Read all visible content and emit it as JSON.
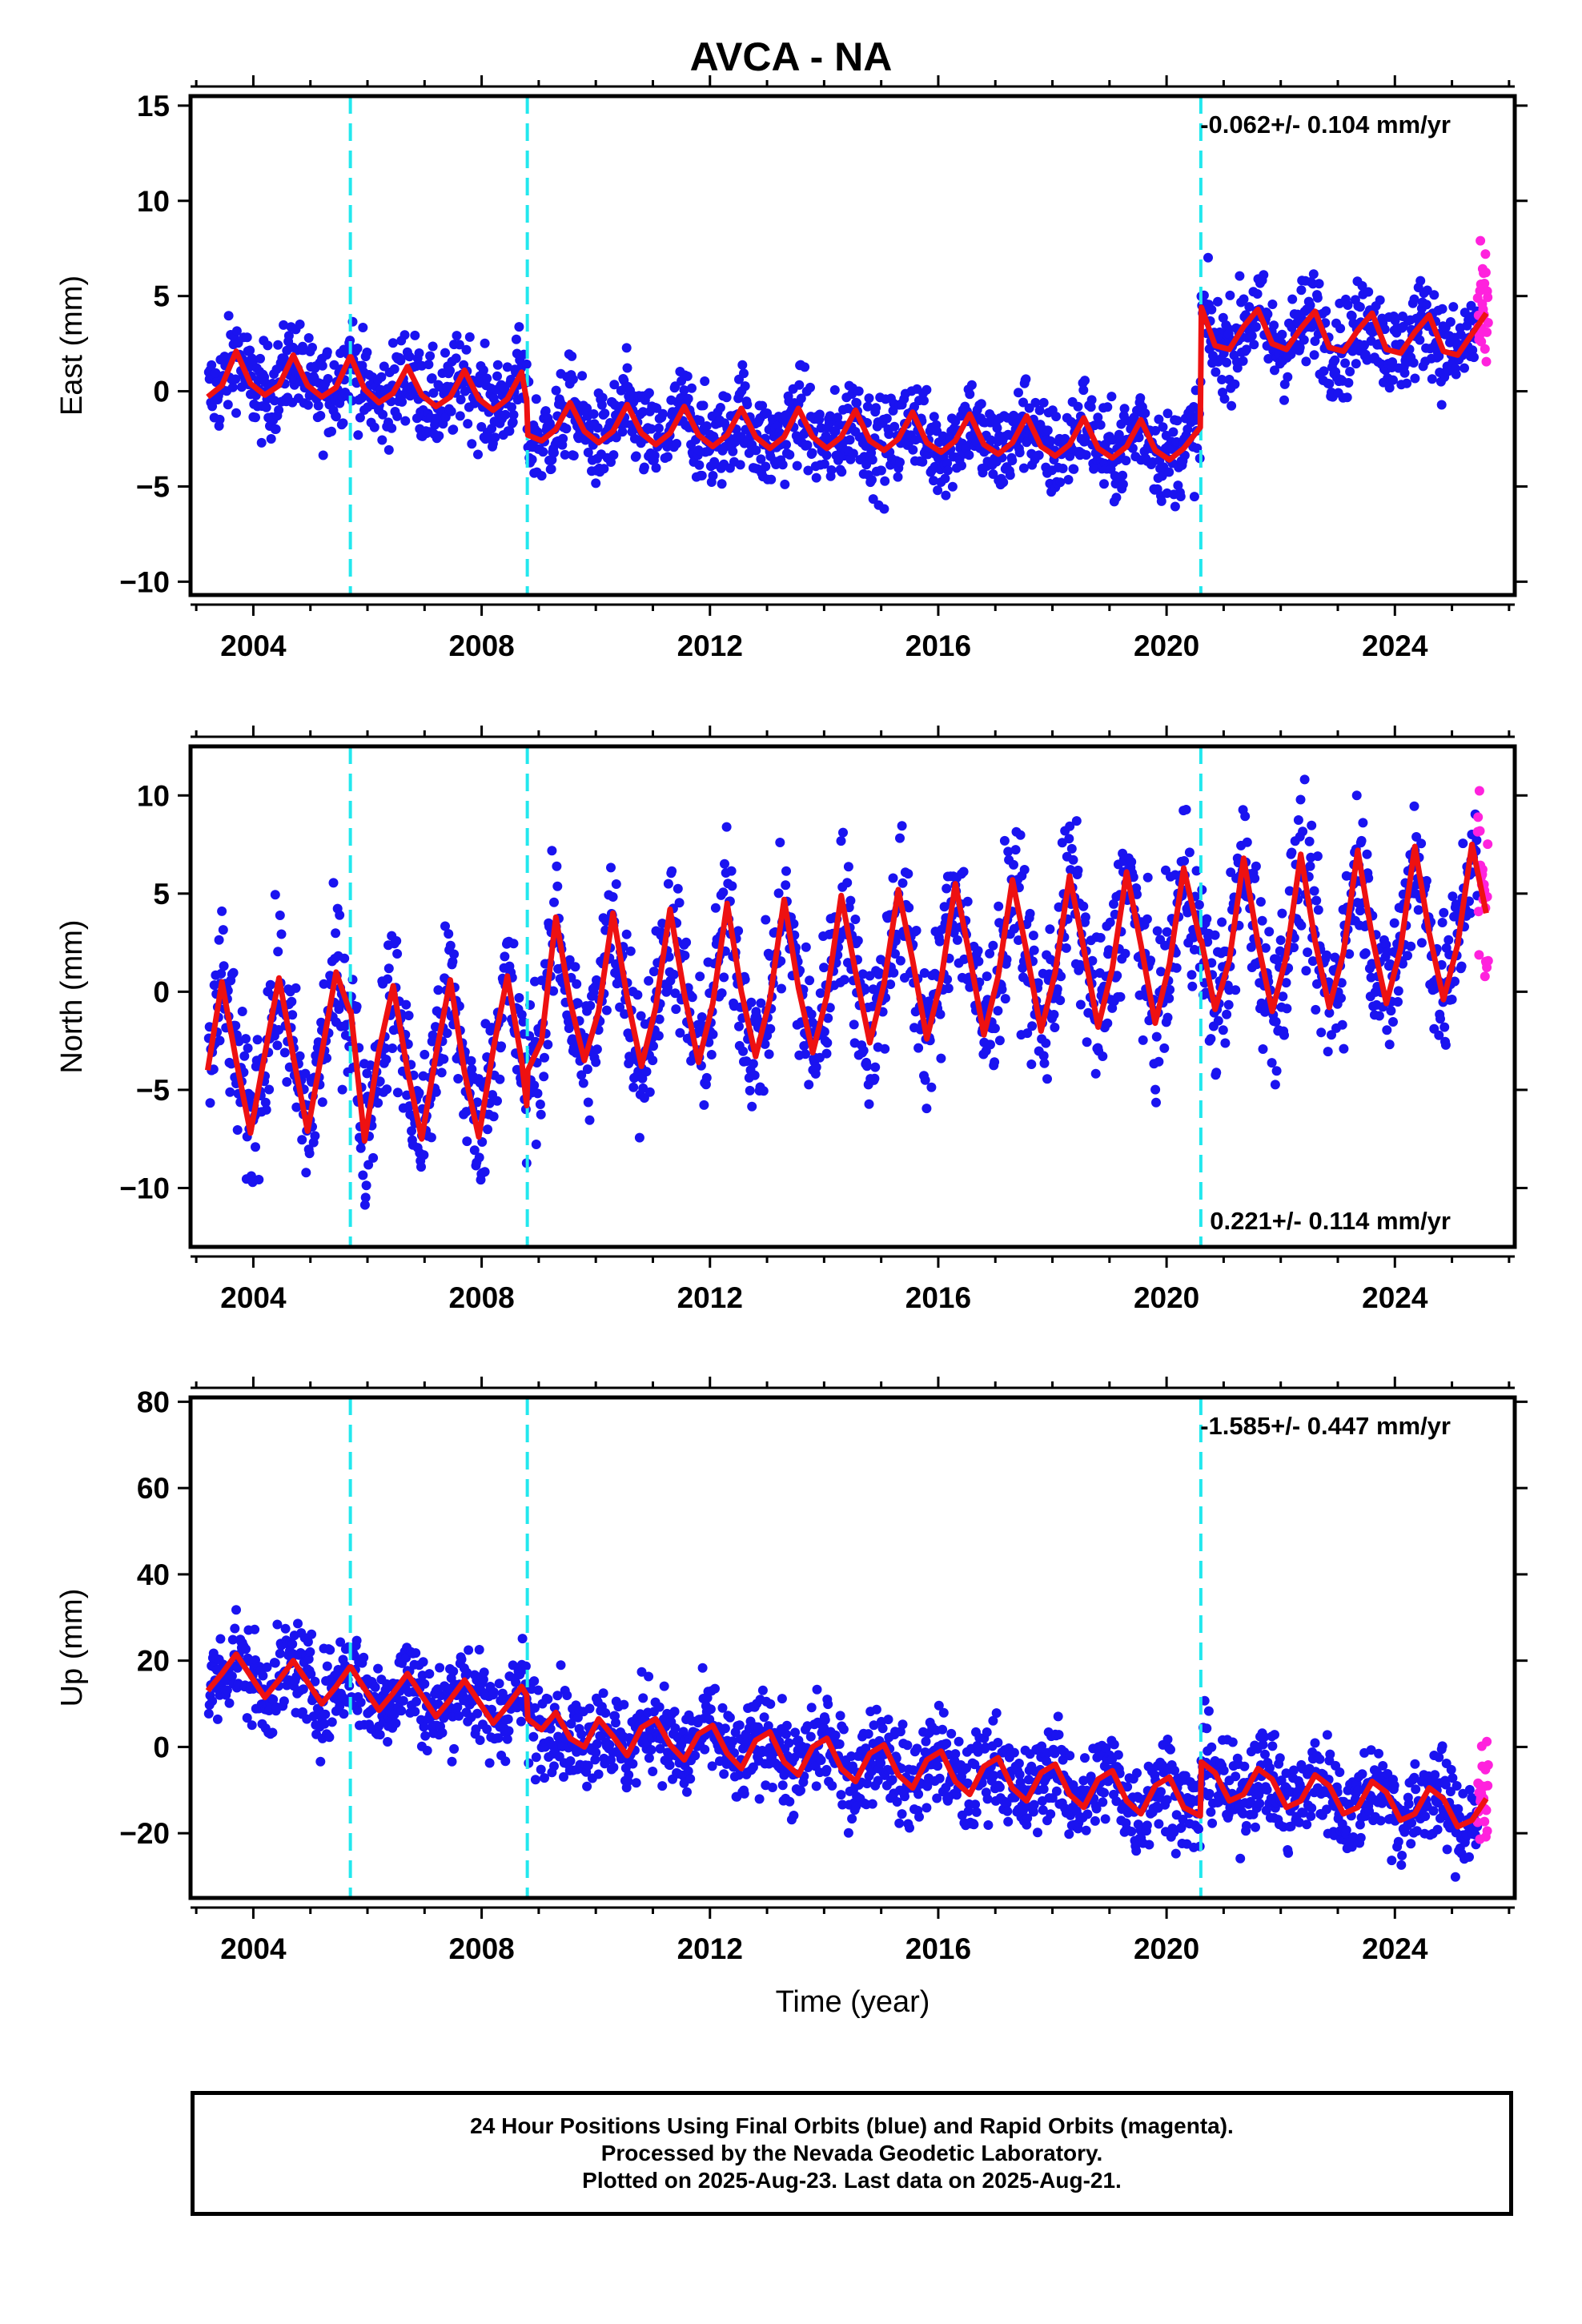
{
  "title": "AVCA - NA",
  "xlabel": "Time (year)",
  "colors": {
    "final_orbits": "#1a13f0",
    "rapid_orbits": "#ff22dd",
    "model": "#ee1111",
    "offsets": "#22e8ee",
    "frame": "#000000"
  },
  "offset_epochs": [
    2005.7,
    2008.8,
    2020.6
  ],
  "footer": {
    "line1": "24 Hour Positions Using Final Orbits (blue) and Rapid Orbits (magenta).",
    "line2": "Processed by the Nevada Geodetic Laboratory.",
    "line3": "Plotted on 2025-Aug-23. Last data on 2025-Aug-21."
  },
  "chart_data": [
    {
      "type": "scatter",
      "ylabel": "East (mm)",
      "rate_label": "-0.062+/- 0.104 mm/yr",
      "rate_position": "top-right",
      "xlim": [
        2002.9,
        2026.1
      ],
      "ylim": [
        -10.7,
        15.5
      ],
      "x_ticks": [
        2004,
        2008,
        2012,
        2016,
        2020,
        2024
      ],
      "y_ticks": [
        -10,
        -5,
        0,
        5,
        10,
        15
      ],
      "grid": false,
      "series": [
        {
          "role": "model",
          "x": [
            2003.2,
            2003.45,
            2003.7,
            2003.95,
            2004.2,
            2004.45,
            2004.7,
            2004.95,
            2005.2,
            2005.45,
            2005.69,
            2005.71,
            2005.95,
            2006.2,
            2006.45,
            2006.7,
            2006.95,
            2007.2,
            2007.45,
            2007.7,
            2007.95,
            2008.2,
            2008.45,
            2008.7,
            2008.79,
            2008.81,
            2009.05,
            2009.3,
            2009.55,
            2009.8,
            2010.05,
            2010.3,
            2010.55,
            2010.8,
            2011.05,
            2011.3,
            2011.55,
            2011.8,
            2012.05,
            2012.3,
            2012.55,
            2012.8,
            2013.05,
            2013.3,
            2013.55,
            2013.8,
            2014.05,
            2014.3,
            2014.55,
            2014.8,
            2015.05,
            2015.3,
            2015.55,
            2015.8,
            2016.05,
            2016.3,
            2016.55,
            2016.8,
            2017.05,
            2017.3,
            2017.55,
            2017.8,
            2018.05,
            2018.3,
            2018.55,
            2018.8,
            2019.05,
            2019.3,
            2019.55,
            2019.8,
            2020.05,
            2020.3,
            2020.59,
            2020.61,
            2020.85,
            2021.1,
            2021.35,
            2021.6,
            2021.85,
            2022.1,
            2022.35,
            2022.6,
            2022.85,
            2023.1,
            2023.35,
            2023.6,
            2023.85,
            2024.1,
            2024.35,
            2024.6,
            2024.85,
            2025.1,
            2025.35,
            2025.6
          ],
          "y": [
            -0.3,
            0.3,
            2.1,
            0.4,
            -0.2,
            0.3,
            1.9,
            0.3,
            -0.3,
            0.2,
            1.8,
            1.8,
            0.1,
            -0.6,
            -0.1,
            1.3,
            -0.2,
            -0.8,
            -0.3,
            1.1,
            -0.4,
            -1.0,
            -0.4,
            1.0,
            -0.5,
            -2.3,
            -2.6,
            -2.0,
            -0.6,
            -2.1,
            -2.7,
            -2.1,
            -0.7,
            -2.2,
            -2.8,
            -2.2,
            -0.8,
            -2.3,
            -2.9,
            -2.3,
            -0.9,
            -2.4,
            -3.0,
            -2.4,
            -0.9,
            -2.4,
            -3.0,
            -2.4,
            -1.0,
            -2.6,
            -3.1,
            -2.5,
            -1.1,
            -2.7,
            -3.2,
            -2.6,
            -1.2,
            -2.8,
            -3.3,
            -2.7,
            -1.3,
            -2.9,
            -3.4,
            -2.8,
            -1.4,
            -3.0,
            -3.5,
            -2.9,
            -1.5,
            -3.1,
            -3.6,
            -3.0,
            -1.9,
            4.4,
            2.4,
            2.2,
            3.4,
            4.3,
            2.5,
            2.2,
            3.3,
            4.2,
            2.3,
            2.1,
            3.2,
            4.1,
            2.2,
            2.0,
            3.1,
            4.0,
            2.1,
            1.9,
            3.0,
            4.1
          ]
        }
      ]
    },
    {
      "type": "scatter",
      "ylabel": "North (mm)",
      "rate_label": "0.221+/- 0.114 mm/yr",
      "rate_position": "bottom-right",
      "xlim": [
        2002.9,
        2026.1
      ],
      "ylim": [
        -13.0,
        12.5
      ],
      "x_ticks": [
        2004,
        2008,
        2012,
        2016,
        2020,
        2024
      ],
      "y_ticks": [
        -10,
        -5,
        0,
        5,
        10
      ],
      "grid": false,
      "series": [
        {
          "role": "model",
          "x": [
            2003.2,
            2003.45,
            2003.7,
            2003.95,
            2004.2,
            2004.45,
            2004.7,
            2004.95,
            2005.2,
            2005.45,
            2005.69,
            2005.71,
            2005.95,
            2006.2,
            2006.45,
            2006.7,
            2006.95,
            2007.2,
            2007.45,
            2007.7,
            2007.95,
            2008.2,
            2008.45,
            2008.7,
            2008.79,
            2008.81,
            2009.05,
            2009.3,
            2009.55,
            2009.8,
            2010.05,
            2010.3,
            2010.55,
            2010.8,
            2011.05,
            2011.3,
            2011.55,
            2011.8,
            2012.05,
            2012.3,
            2012.55,
            2012.8,
            2013.05,
            2013.3,
            2013.55,
            2013.8,
            2014.05,
            2014.3,
            2014.55,
            2014.8,
            2015.05,
            2015.3,
            2015.55,
            2015.8,
            2016.05,
            2016.3,
            2016.55,
            2016.8,
            2017.05,
            2017.3,
            2017.55,
            2017.8,
            2018.05,
            2018.3,
            2018.55,
            2018.8,
            2019.05,
            2019.3,
            2019.55,
            2019.8,
            2020.05,
            2020.3,
            2020.59,
            2020.61,
            2020.85,
            2021.1,
            2021.35,
            2021.6,
            2021.85,
            2022.1,
            2022.35,
            2022.6,
            2022.85,
            2023.1,
            2023.35,
            2023.6,
            2023.85,
            2024.1,
            2024.35,
            2024.6,
            2024.85,
            2025.1,
            2025.35,
            2025.6
          ],
          "y": [
            -4.0,
            0.5,
            -3.5,
            -7.2,
            -3.2,
            0.7,
            -3.3,
            -7.1,
            -3.1,
            1.0,
            -1.0,
            -1.0,
            -7.6,
            -3.0,
            0.3,
            -4.0,
            -7.5,
            -3.2,
            0.6,
            -4.1,
            -7.4,
            -3.0,
            0.8,
            -3.5,
            -5.8,
            -4.0,
            -2.5,
            3.8,
            -0.5,
            -3.5,
            -1.0,
            4.0,
            -0.3,
            -3.8,
            -0.8,
            4.2,
            -0.1,
            -3.6,
            -0.6,
            4.5,
            0.0,
            -3.3,
            -0.4,
            4.7,
            0.2,
            -3.1,
            -0.2,
            4.9,
            1.0,
            -2.6,
            0.4,
            5.2,
            1.6,
            -2.4,
            0.6,
            5.5,
            1.8,
            -2.2,
            0.8,
            5.7,
            2.0,
            -2.0,
            1.0,
            5.9,
            2.2,
            -1.8,
            1.2,
            6.1,
            2.4,
            -1.6,
            1.4,
            6.3,
            2.6,
            2.6,
            -0.9,
            1.6,
            6.8,
            2.5,
            -1.0,
            1.8,
            7.0,
            2.6,
            -0.8,
            2.0,
            7.2,
            2.8,
            -0.6,
            2.2,
            7.4,
            3.0,
            -0.4,
            2.4,
            7.5,
            4.0
          ]
        }
      ]
    },
    {
      "type": "scatter",
      "ylabel": "Up (mm)",
      "rate_label": "-1.585+/- 0.447 mm/yr",
      "rate_position": "top-right",
      "xlim": [
        2002.9,
        2026.1
      ],
      "ylim": [
        -35,
        81
      ],
      "x_ticks": [
        2004,
        2008,
        2012,
        2016,
        2020,
        2024
      ],
      "y_ticks": [
        -20,
        0,
        20,
        40,
        60,
        80
      ],
      "grid": false,
      "series": [
        {
          "role": "model",
          "x": [
            2003.2,
            2003.45,
            2003.7,
            2003.95,
            2004.2,
            2004.45,
            2004.7,
            2004.95,
            2005.2,
            2005.45,
            2005.69,
            2005.71,
            2005.95,
            2006.2,
            2006.45,
            2006.7,
            2006.95,
            2007.2,
            2007.45,
            2007.7,
            2007.95,
            2008.2,
            2008.45,
            2008.7,
            2008.79,
            2008.81,
            2009.05,
            2009.3,
            2009.55,
            2009.8,
            2010.05,
            2010.3,
            2010.55,
            2010.8,
            2011.05,
            2011.3,
            2011.55,
            2011.8,
            2012.05,
            2012.3,
            2012.55,
            2012.8,
            2013.05,
            2013.3,
            2013.55,
            2013.8,
            2014.05,
            2014.3,
            2014.55,
            2014.8,
            2015.05,
            2015.3,
            2015.55,
            2015.8,
            2016.05,
            2016.3,
            2016.55,
            2016.8,
            2017.05,
            2017.3,
            2017.55,
            2017.8,
            2018.05,
            2018.3,
            2018.55,
            2018.8,
            2019.05,
            2019.3,
            2019.55,
            2019.8,
            2020.05,
            2020.3,
            2020.59,
            2020.61,
            2020.85,
            2021.1,
            2021.35,
            2021.6,
            2021.85,
            2022.1,
            2022.35,
            2022.6,
            2022.85,
            2023.1,
            2023.35,
            2023.6,
            2023.85,
            2024.1,
            2024.35,
            2024.6,
            2024.85,
            2025.1,
            2025.35,
            2025.6
          ],
          "y": [
            13.0,
            17.0,
            21.5,
            16.5,
            11.5,
            15.5,
            20.0,
            15.0,
            10.0,
            14.0,
            18.5,
            18.5,
            13.5,
            8.5,
            12.5,
            17.0,
            12.0,
            7.0,
            11.0,
            15.5,
            10.5,
            5.5,
            9.5,
            14.0,
            12.0,
            6.5,
            4.0,
            8.0,
            2.0,
            0.0,
            6.5,
            2.5,
            -2.0,
            4.5,
            6.5,
            0.5,
            -3.0,
            3.0,
            5.0,
            -1.5,
            -5.0,
            1.5,
            3.5,
            -3.5,
            -6.5,
            0.0,
            2.0,
            -5.0,
            -8.0,
            -1.5,
            0.5,
            -6.5,
            -9.5,
            -3.0,
            -1.0,
            -8.0,
            -11.0,
            -4.5,
            -2.5,
            -9.5,
            -12.5,
            -6.0,
            -4.0,
            -11.0,
            -14.0,
            -7.5,
            -5.5,
            -12.5,
            -15.5,
            -9.0,
            -7.0,
            -14.0,
            -16.0,
            -3.5,
            -6.0,
            -12.5,
            -11.0,
            -5.0,
            -7.5,
            -14.0,
            -12.5,
            -6.5,
            -9.0,
            -15.5,
            -14.0,
            -8.0,
            -10.5,
            -17.0,
            -15.5,
            -9.5,
            -12.0,
            -18.5,
            -17.0,
            -12.0
          ]
        }
      ]
    }
  ]
}
